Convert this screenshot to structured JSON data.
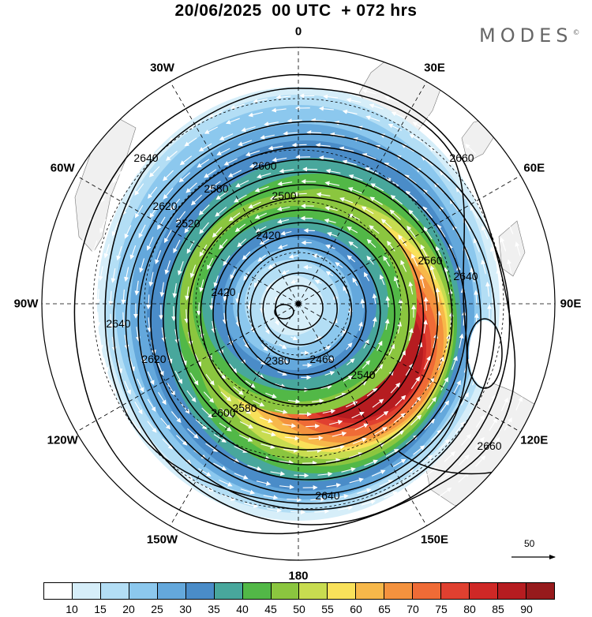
{
  "header": {
    "title": "20/06/2025  00 UTC  + 072 hrs",
    "logo": "MODES"
  },
  "map": {
    "projection": "south-polar-stereographic",
    "longitude_labels": [
      "0",
      "30E",
      "60E",
      "90E",
      "120E",
      "150E",
      "180",
      "150W",
      "120W",
      "90W",
      "60W",
      "30W"
    ],
    "contour_labels": [
      "2380",
      "2420",
      "2420",
      "2460",
      "2500",
      "2520",
      "2540",
      "2560",
      "2580",
      "2580",
      "2600",
      "2600",
      "2620",
      "2620",
      "2640",
      "2640",
      "2640",
      "2640",
      "2660",
      "2660"
    ],
    "wind_reference": "50",
    "colors": {
      "land": "#f0f0f0",
      "contour": "#000000",
      "vectors": "#ffffff"
    }
  },
  "colorbar": {
    "labels": [
      "10",
      "15",
      "20",
      "25",
      "30",
      "35",
      "40",
      "45",
      "50",
      "55",
      "60",
      "65",
      "70",
      "75",
      "80",
      "85",
      "90"
    ],
    "colors": [
      "#ffffff",
      "#d6eef9",
      "#b3def5",
      "#8cc8ee",
      "#64a8dc",
      "#4a8cc8",
      "#48a79c",
      "#52b847",
      "#8bc63f",
      "#c8dc50",
      "#f9e15a",
      "#f7b84a",
      "#f4923e",
      "#ef6b36",
      "#e04030",
      "#cf2826",
      "#b61c20",
      "#961a1c"
    ]
  }
}
